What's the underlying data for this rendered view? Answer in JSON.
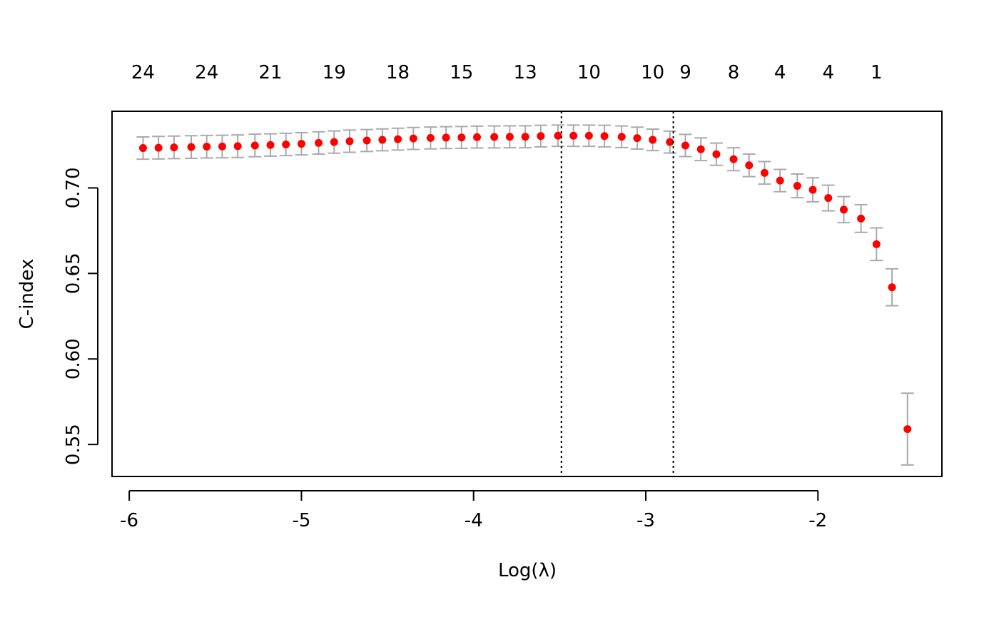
{
  "chart_data": {
    "type": "scatter",
    "title": "",
    "xlabel": "Log(λ)",
    "ylabel": "C-index",
    "xlim": [
      -6.1,
      -1.28
    ],
    "ylim": [
      0.5313,
      0.7448
    ],
    "x_ticks": [
      -6,
      -5,
      -4,
      -3,
      -2
    ],
    "x_tick_labels": [
      "-6",
      "-5",
      "-4",
      "-3",
      "-2"
    ],
    "y_ticks": [
      0.55,
      0.6,
      0.65,
      0.7
    ],
    "y_tick_labels": [
      "0.55",
      "0.60",
      "0.65",
      "0.70"
    ],
    "top_axis": {
      "positions": [
        -5.92,
        -5.55,
        -5.18,
        -4.81,
        -4.44,
        -4.07,
        -3.7,
        -3.33,
        -2.96,
        -2.77,
        -2.49,
        -2.22,
        -1.94,
        -1.66
      ],
      "labels": [
        "24",
        "24",
        "21",
        "19",
        "18",
        "15",
        "13",
        "10",
        "10",
        "9",
        "8",
        "4",
        "4",
        "1"
      ]
    },
    "vlines": [
      -3.49,
      -2.84
    ],
    "grid": false,
    "colors": {
      "point": "#ff0000",
      "errorbar": "#aaaaaa",
      "vline": "#000000"
    },
    "series": [
      {
        "x": [
          -5.92,
          -5.83,
          -5.74,
          -5.64,
          -5.55,
          -5.46,
          -5.37,
          -5.27,
          -5.18,
          -5.09,
          -5.0,
          -4.9,
          -4.81,
          -4.72,
          -4.62,
          -4.53,
          -4.44,
          -4.35,
          -4.25,
          -4.16,
          -4.07,
          -3.98,
          -3.88,
          -3.79,
          -3.7,
          -3.61,
          -3.51,
          -3.42,
          -3.33,
          -3.24,
          -3.14,
          -3.05,
          -2.96,
          -2.86,
          -2.77,
          -2.68,
          -2.59,
          -2.49,
          -2.4,
          -2.31,
          -2.22,
          -2.12,
          -2.03,
          -1.94,
          -1.85,
          -1.75,
          -1.66,
          -1.57,
          -1.48
        ],
        "y": [
          0.7233,
          0.7235,
          0.7237,
          0.7239,
          0.7241,
          0.7242,
          0.7244,
          0.7248,
          0.7251,
          0.7254,
          0.7258,
          0.7263,
          0.7268,
          0.7273,
          0.7277,
          0.7281,
          0.7285,
          0.7289,
          0.7292,
          0.7294,
          0.7295,
          0.7297,
          0.7298,
          0.7299,
          0.7299,
          0.7303,
          0.7305,
          0.7305,
          0.7305,
          0.7303,
          0.7299,
          0.7291,
          0.7281,
          0.7268,
          0.7248,
          0.7226,
          0.7197,
          0.7168,
          0.7132,
          0.7088,
          0.7043,
          0.7012,
          0.6989,
          0.6941,
          0.6873,
          0.6821,
          0.6671,
          0.6419,
          0.559
        ],
        "err_low": [
          0.7168,
          0.7169,
          0.7171,
          0.7173,
          0.7175,
          0.7176,
          0.7178,
          0.7182,
          0.7186,
          0.7189,
          0.7193,
          0.7198,
          0.7203,
          0.7208,
          0.7213,
          0.7217,
          0.7221,
          0.7225,
          0.7228,
          0.723,
          0.7231,
          0.7233,
          0.7234,
          0.7235,
          0.7235,
          0.724,
          0.7243,
          0.7243,
          0.7243,
          0.724,
          0.7236,
          0.7227,
          0.7218,
          0.7204,
          0.7183,
          0.716,
          0.7132,
          0.7101,
          0.7066,
          0.7022,
          0.6978,
          0.6943,
          0.6919,
          0.6866,
          0.6797,
          0.674,
          0.6576,
          0.6311,
          0.538
        ],
        "err_high": [
          0.7298,
          0.7301,
          0.7303,
          0.7305,
          0.7307,
          0.7308,
          0.731,
          0.7314,
          0.7316,
          0.7319,
          0.7323,
          0.7328,
          0.7333,
          0.7338,
          0.7341,
          0.7345,
          0.7349,
          0.7353,
          0.7356,
          0.7358,
          0.7359,
          0.7361,
          0.7362,
          0.7363,
          0.7363,
          0.7366,
          0.7367,
          0.7367,
          0.7367,
          0.7366,
          0.7362,
          0.7355,
          0.7344,
          0.7332,
          0.7313,
          0.7292,
          0.7262,
          0.7235,
          0.7198,
          0.7154,
          0.7108,
          0.7081,
          0.7059,
          0.7016,
          0.6949,
          0.6902,
          0.6766,
          0.6527,
          0.58
        ]
      }
    ]
  }
}
